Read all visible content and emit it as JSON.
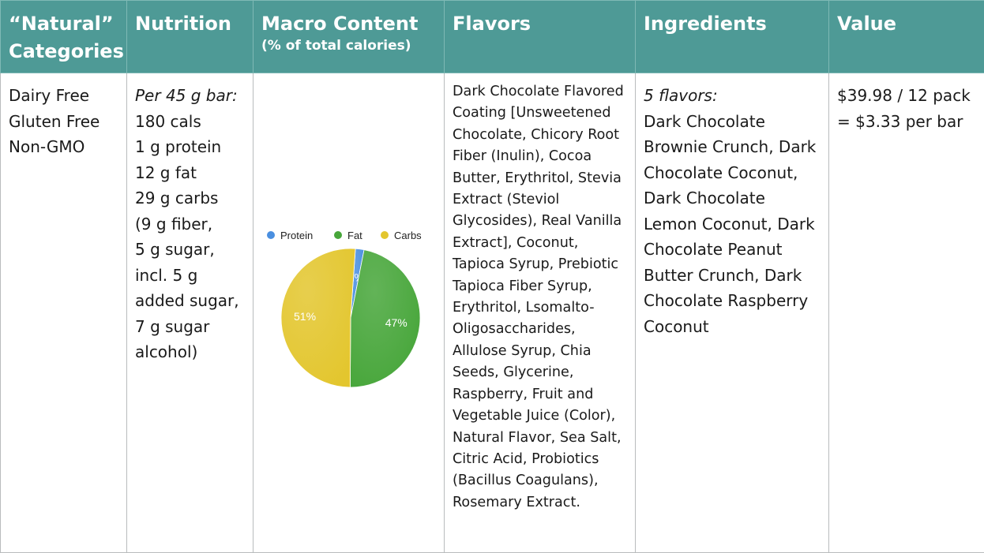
{
  "headers": {
    "categories": [
      "“Natural”",
      "Categories"
    ],
    "nutrition": "Nutrition",
    "macro": "Macro Content",
    "macro_sub": "(% of total calories)",
    "flavors": "Flavors",
    "ingredients": "Ingredients",
    "value": "Value"
  },
  "categories": [
    "Dairy Free",
    "Gluten Free",
    "Non-GMO"
  ],
  "nutrition": {
    "label": "Per 45 g bar:",
    "lines": [
      "180 cals",
      "1 g protein",
      "12 g fat",
      "29 g carbs",
      "(9 g fiber,",
      "5 g sugar,",
      "incl. 5 g",
      "added sugar,",
      "7 g sugar",
      "alcohol)"
    ]
  },
  "flavors_text": "Dark Chocolate Flavored Coating [Unsweetened Chocolate, Chicory Root Fiber (Inulin), Cocoa Butter, Erythritol, Stevia Extract (Steviol Glycosides), Real Vanilla Extract], Coconut, Tapioca Syrup, Prebiotic Tapioca Fiber Syrup, Erythritol, Lsomalto-Oligosaccharides, Allulose Syrup, Chia Seeds, Glycerine, Raspberry, Fruit and Vegetable Juice (Color), Natural Flavor, Sea Salt, Citric Acid, Probiotics (Bacillus Coagulans), Rosemary Extract.",
  "ingredients": {
    "label": "5 flavors:",
    "text": "Dark Chocolate Brownie Crunch, Dark Chocolate Coconut, Dark Chocolate Lemon Coconut, Dark Chocolate Peanut Butter Crunch, Dark Chocolate Raspberry Coconut"
  },
  "value": {
    "line1": "$39.98 / 12 pack",
    "line2": "= $3.33 per bar"
  },
  "colors": {
    "header_bg": "#4e9a96",
    "protein": "#4a8fe0",
    "fat": "#47a63a",
    "carbs": "#e3c62e"
  },
  "chart_data": {
    "type": "pie",
    "legend_position": "top",
    "categories": [
      "Protein",
      "Fat",
      "Carbs"
    ],
    "values": [
      2,
      47,
      51
    ],
    "labels": [
      "2%",
      "47%",
      "51%"
    ]
  }
}
